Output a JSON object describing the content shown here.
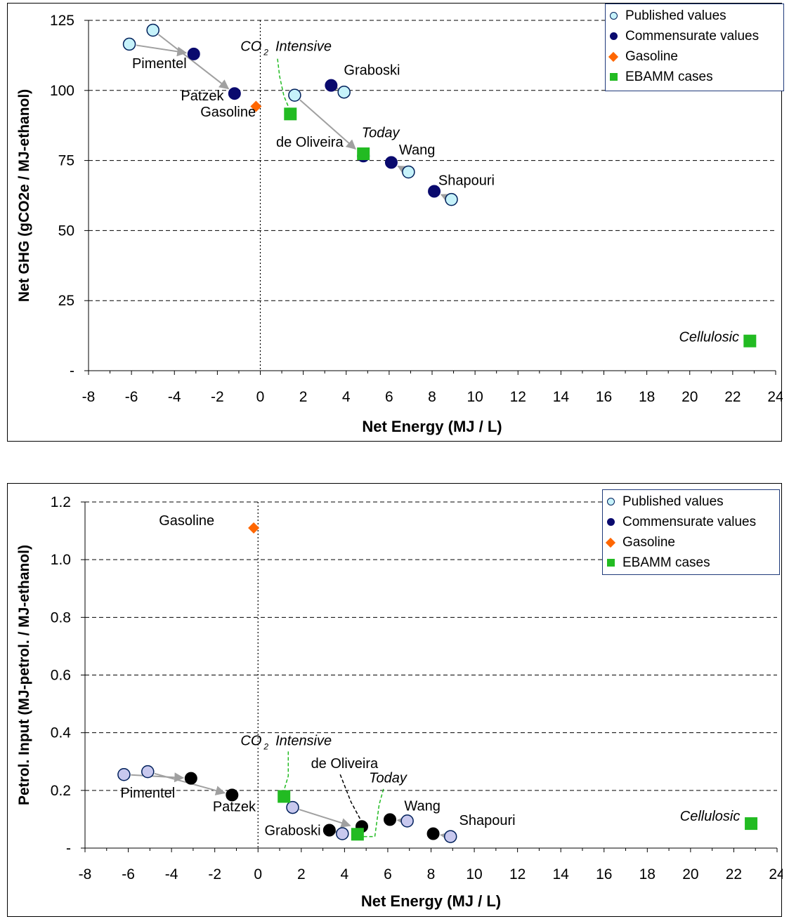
{
  "legend": {
    "published": "Published values",
    "commensurate": "Commensurate values",
    "gasoline": "Gasoline",
    "ebamm": "EBAMM cases"
  },
  "colors": {
    "published_fill": "#c6f2fa",
    "published_fill_lower": "#c8c8ee",
    "commensurate_top": "#0a0a6e",
    "commensurate_bottom": "#000000",
    "gasoline": "#ff6600",
    "ebamm": "#22bb22",
    "arrow": "#a0a0a0"
  },
  "chart_data": [
    {
      "type": "scatter",
      "xlabel": "Net Energy (MJ / L)",
      "ylabel": "Net GHG (gCO2e / MJ-ethanol)",
      "x_ticks": [
        "-8",
        "-6",
        "-4",
        "-2",
        "0",
        "2",
        "4",
        "6",
        "8",
        "10",
        "12",
        "14",
        "16",
        "18",
        "20",
        "22",
        "24"
      ],
      "y_ticks": [
        "-",
        "25",
        "50",
        "75",
        "100",
        "125"
      ],
      "xlim": [
        -8,
        24
      ],
      "ylim": [
        0,
        125
      ],
      "grid": "horizontal dashed",
      "legend_position": "top-right",
      "series": [
        {
          "name": "Published values",
          "points": [
            [
              -6.1,
              116.5
            ],
            [
              -5.0,
              121.5
            ],
            [
              1.6,
              98.3
            ],
            [
              3.9,
              99.4
            ],
            [
              6.9,
              70.9
            ],
            [
              8.9,
              61.1
            ]
          ]
        },
        {
          "name": "Commensurate values",
          "points": [
            [
              -3.1,
              113.0
            ],
            [
              -1.2,
              98.9
            ],
            [
              3.3,
              101.8
            ],
            [
              4.8,
              76.6
            ],
            [
              6.1,
              74.3
            ],
            [
              8.1,
              64.0
            ]
          ]
        },
        {
          "name": "Gasoline",
          "points": [
            [
              -0.2,
              94.3
            ]
          ]
        },
        {
          "name": "EBAMM cases",
          "points": [
            [
              1.4,
              91.6
            ],
            [
              4.8,
              77.4
            ],
            [
              22.8,
              10.6
            ]
          ]
        }
      ],
      "arrows": [
        [
          [
            -6.1,
            116.5
          ],
          [
            -3.1,
            113.0
          ]
        ],
        [
          [
            -5.0,
            121.5
          ],
          [
            -1.2,
            98.9
          ]
        ],
        [
          [
            3.9,
            99.4
          ],
          [
            3.3,
            101.8
          ]
        ],
        [
          [
            1.6,
            98.3
          ],
          [
            4.7,
            77.3
          ]
        ],
        [
          [
            6.9,
            70.9
          ],
          [
            6.1,
            74.3
          ]
        ],
        [
          [
            8.9,
            61.1
          ],
          [
            8.1,
            64.0
          ]
        ]
      ],
      "labels": [
        {
          "text": "Pimentel",
          "x": -4.7,
          "y": 108.0,
          "italic": false
        },
        {
          "text": "Patzek",
          "x": -2.7,
          "y": 96.5,
          "italic": false
        },
        {
          "text": "Gasoline",
          "x": -1.5,
          "y": 90.7,
          "italic": false
        },
        {
          "text": "Graboski",
          "x": 5.2,
          "y": 105.6,
          "italic": false
        },
        {
          "text": "de Oliveira",
          "x": 2.3,
          "y": 79.9,
          "italic": false
        },
        {
          "text": "Wang",
          "x": 7.3,
          "y": 77.1,
          "italic": false
        },
        {
          "text": "Shapouri",
          "x": 9.6,
          "y": 66.2,
          "italic": false
        },
        {
          "text": "Today",
          "x": 5.6,
          "y": 83.3,
          "italic": true
        },
        {
          "text": "Cellulosic",
          "x": 20.9,
          "y": 10.4,
          "italic": true
        }
      ],
      "co2_label": {
        "base": "CO",
        "sub": "2",
        "word": "Intensive",
        "x": 1.2,
        "y": 114.1
      },
      "dashed_leaders": [
        {
          "color": "#22bb22",
          "points": [
            [
              0.8,
              111.3
            ],
            [
              0.9,
              105.0
            ],
            [
              1.1,
              98.0
            ],
            [
              1.4,
              92.5
            ]
          ]
        }
      ]
    },
    {
      "type": "scatter",
      "xlabel": "Net Energy (MJ / L)",
      "ylabel": "Petrol. Input (MJ-petrol. / MJ-ethanol)",
      "x_ticks": [
        "-8",
        "-6",
        "-4",
        "-2",
        "0",
        "2",
        "4",
        "6",
        "8",
        "10",
        "12",
        "14",
        "16",
        "18",
        "20",
        "22",
        "24"
      ],
      "y_ticks": [
        "-",
        "0.2",
        "0.4",
        "0.6",
        "0.8",
        "1.0",
        "1.2"
      ],
      "xlim": [
        -8,
        24
      ],
      "ylim": [
        0,
        1.2
      ],
      "grid": "horizontal dashed",
      "legend_position": "top-right",
      "series": [
        {
          "name": "Published values",
          "points": [
            [
              -6.2,
              0.255
            ],
            [
              -5.1,
              0.265
            ],
            [
              1.6,
              0.141
            ],
            [
              3.9,
              0.05
            ],
            [
              6.9,
              0.094
            ],
            [
              8.9,
              0.04
            ]
          ]
        },
        {
          "name": "Commensurate values",
          "points": [
            [
              -3.1,
              0.242
            ],
            [
              -1.2,
              0.184
            ],
            [
              3.3,
              0.062
            ],
            [
              4.8,
              0.075
            ],
            [
              6.1,
              0.099
            ],
            [
              8.1,
              0.05
            ]
          ]
        },
        {
          "name": "Gasoline",
          "points": [
            [
              -0.2,
              1.11
            ]
          ]
        },
        {
          "name": "EBAMM cases",
          "points": [
            [
              1.2,
              0.179
            ],
            [
              4.6,
              0.048
            ],
            [
              22.8,
              0.085
            ]
          ]
        }
      ],
      "arrows": [
        [
          [
            -6.2,
            0.255
          ],
          [
            -3.1,
            0.242
          ]
        ],
        [
          [
            -5.1,
            0.265
          ],
          [
            -1.2,
            0.184
          ]
        ],
        [
          [
            3.9,
            0.05
          ],
          [
            3.3,
            0.062
          ]
        ],
        [
          [
            1.6,
            0.141
          ],
          [
            4.6,
            0.07
          ]
        ],
        [
          [
            6.9,
            0.094
          ],
          [
            6.1,
            0.099
          ]
        ],
        [
          [
            8.9,
            0.04
          ],
          [
            8.1,
            0.05
          ]
        ]
      ],
      "labels": [
        {
          "text": "Gasoline",
          "x": -3.3,
          "y": 1.12,
          "italic": false
        },
        {
          "text": "Pimentel",
          "x": -5.1,
          "y": 0.175,
          "italic": false
        },
        {
          "text": "Patzek",
          "x": -1.1,
          "y": 0.128,
          "italic": false
        },
        {
          "text": "Graboski",
          "x": 1.6,
          "y": 0.045,
          "italic": false
        },
        {
          "text": "de Oliveira",
          "x": 4.0,
          "y": 0.278,
          "italic": false
        },
        {
          "text": "Wang",
          "x": 7.6,
          "y": 0.13,
          "italic": false
        },
        {
          "text": "Shapouri",
          "x": 10.6,
          "y": 0.08,
          "italic": false
        },
        {
          "text": "Today",
          "x": 6.0,
          "y": 0.227,
          "italic": true
        },
        {
          "text": "Cellulosic",
          "x": 20.9,
          "y": 0.095,
          "italic": true
        }
      ],
      "co2_label": {
        "base": "CO",
        "sub": "2",
        "word": "Intensive",
        "x": 1.3,
        "y": 0.357
      },
      "dashed_leaders": [
        {
          "color": "#22bb22",
          "points": [
            [
              1.4,
              0.335
            ],
            [
              1.4,
              0.25
            ],
            [
              1.2,
              0.2
            ]
          ]
        },
        {
          "color": "#22bb22",
          "points": [
            [
              5.8,
              0.205
            ],
            [
              5.6,
              0.15
            ],
            [
              5.4,
              0.04
            ],
            [
              4.8,
              0.04
            ]
          ]
        },
        {
          "color": "#000000",
          "points": [
            [
              3.8,
              0.255
            ],
            [
              4.3,
              0.16
            ],
            [
              4.8,
              0.09
            ]
          ]
        }
      ]
    }
  ]
}
